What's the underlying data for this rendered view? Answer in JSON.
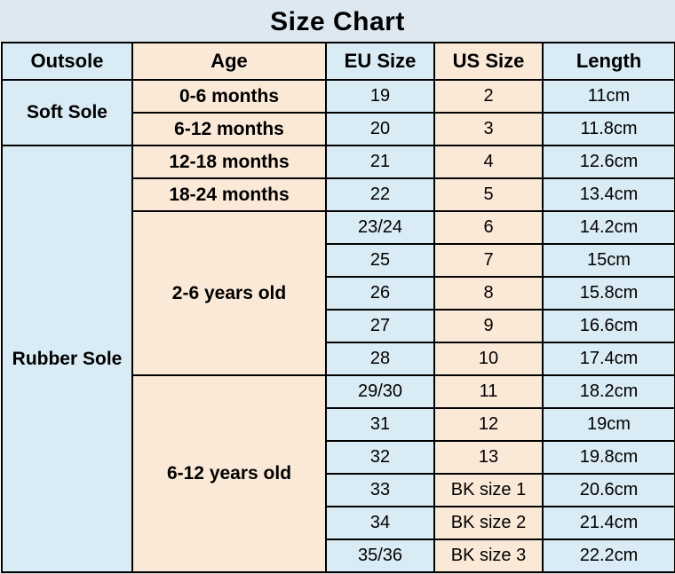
{
  "title": "Size Chart",
  "colors": {
    "title_background": "#dde8f0",
    "blue_cell": "#d9ebf4",
    "peach_cell": "#fbe9d8",
    "border": "#000000",
    "text": "#000000"
  },
  "chart_data": {
    "type": "table",
    "title": "Size Chart",
    "columns": [
      "Outsole",
      "Age",
      "EU Size",
      "US Size",
      "Length"
    ],
    "sections": [
      {
        "outsole": "Soft Sole",
        "age_groups": [
          {
            "age": "0-6 months",
            "rows": [
              {
                "eu_size": "19",
                "us_size": "2",
                "length": "11cm"
              }
            ]
          },
          {
            "age": "6-12 months",
            "rows": [
              {
                "eu_size": "20",
                "us_size": "3",
                "length": "11.8cm"
              }
            ]
          }
        ]
      },
      {
        "outsole": "Rubber Sole",
        "age_groups": [
          {
            "age": "12-18 months",
            "rows": [
              {
                "eu_size": "21",
                "us_size": "4",
                "length": "12.6cm"
              }
            ]
          },
          {
            "age": "18-24 months",
            "rows": [
              {
                "eu_size": "22",
                "us_size": "5",
                "length": "13.4cm"
              }
            ]
          },
          {
            "age": "2-6 years old",
            "rows": [
              {
                "eu_size": "23/24",
                "us_size": "6",
                "length": "14.2cm"
              },
              {
                "eu_size": "25",
                "us_size": "7",
                "length": "15cm"
              },
              {
                "eu_size": "26",
                "us_size": "8",
                "length": "15.8cm"
              },
              {
                "eu_size": "27",
                "us_size": "9",
                "length": "16.6cm"
              },
              {
                "eu_size": "28",
                "us_size": "10",
                "length": "17.4cm"
              }
            ]
          },
          {
            "age": "6-12 years old",
            "rows": [
              {
                "eu_size": "29/30",
                "us_size": "11",
                "length": "18.2cm"
              },
              {
                "eu_size": "31",
                "us_size": "12",
                "length": "19cm"
              },
              {
                "eu_size": "32",
                "us_size": "13",
                "length": "19.8cm"
              },
              {
                "eu_size": "33",
                "us_size": "BK size 1",
                "length": "20.6cm"
              },
              {
                "eu_size": "34",
                "us_size": "BK size 2",
                "length": "21.4cm"
              },
              {
                "eu_size": "35/36",
                "us_size": "BK size 3",
                "length": "22.2cm"
              }
            ]
          }
        ]
      }
    ]
  }
}
